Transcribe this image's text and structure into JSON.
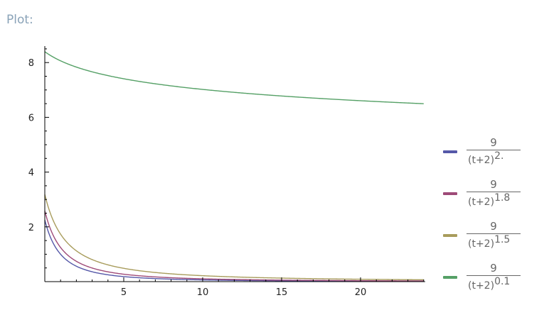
{
  "title": "Plot:",
  "chart_data": {
    "type": "line",
    "title": "",
    "xlabel": "",
    "ylabel": "",
    "xlim": [
      0,
      24
    ],
    "ylim": [
      0,
      8.6
    ],
    "x_ticks": [
      "5",
      "10",
      "15",
      "20"
    ],
    "y_ticks": [
      "2",
      "4",
      "6",
      "8"
    ],
    "grid": false,
    "legend_position": "right",
    "x": [
      0,
      4,
      8,
      12,
      16,
      20,
      24
    ],
    "series": [
      {
        "name": "9/(t+2)^2.",
        "numerator": "9",
        "denominator": "(t+2)",
        "exponent_label": "2.",
        "exponent": 2.0,
        "color": "#5558a8",
        "values": [
          2.25,
          0.25,
          0.09,
          0.0459,
          0.0278,
          0.0186,
          0.0133
        ]
      },
      {
        "name": "9/(t+2)^1.8",
        "numerator": "9",
        "denominator": "(t+2)",
        "exponent_label": "1.8",
        "exponent": 1.8,
        "color": "#9e4a78",
        "values": [
          2.585,
          0.358,
          0.143,
          0.078,
          0.0495,
          0.0345,
          0.0255
        ]
      },
      {
        "name": "9/(t+2)^1.5",
        "numerator": "9",
        "denominator": "(t+2)",
        "exponent_label": "1.5",
        "exponent": 1.5,
        "color": "#a89c5c",
        "values": [
          3.182,
          0.612,
          0.285,
          0.172,
          0.118,
          0.0872,
          0.0679
        ]
      },
      {
        "name": "9/(t+2)^0.1",
        "numerator": "9",
        "denominator": "(t+2)",
        "exponent_label": "0.1",
        "exponent": 0.1,
        "color": "#55a066",
        "values": [
          8.397,
          7.524,
          7.149,
          6.912,
          6.741,
          6.607,
          6.498
        ]
      }
    ]
  }
}
